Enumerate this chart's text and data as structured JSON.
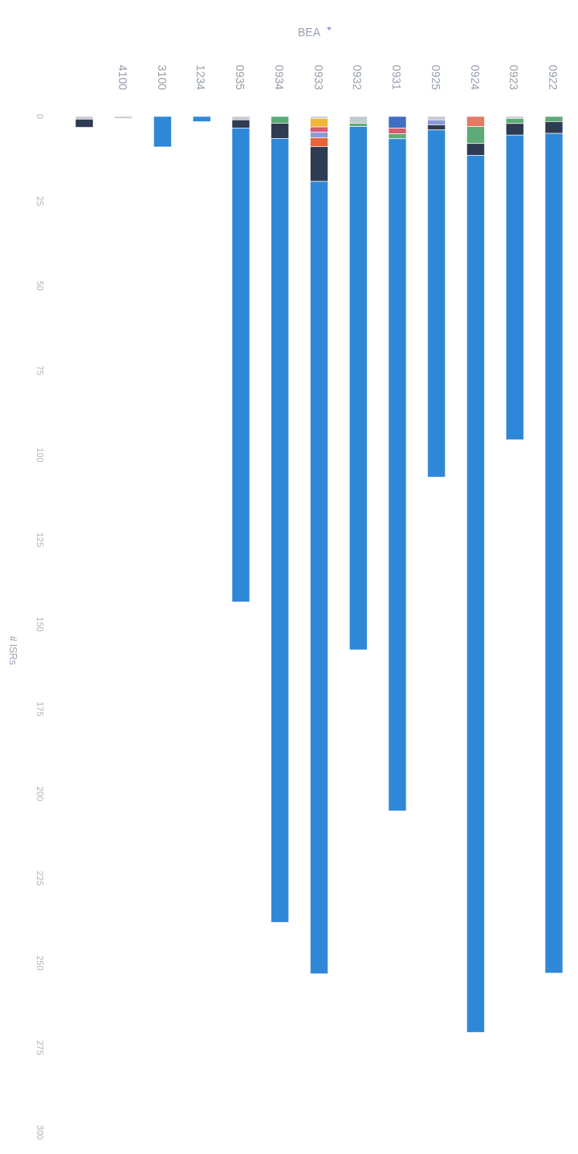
{
  "chart_data": {
    "type": "bar",
    "stacked": true,
    "xlabel": "BEA",
    "ylabel": "# ISRs",
    "categories": [
      null,
      "4100",
      "3100",
      "1234",
      "0935",
      "0934",
      "0933",
      "0932",
      "0931",
      "0925",
      "0924",
      "0923",
      "0922"
    ],
    "ylim": [
      300,
      0
    ],
    "yticks": [
      0,
      25,
      50,
      75,
      100,
      125,
      150,
      175,
      200,
      225,
      250,
      275,
      300
    ],
    "grid": false,
    "series": [
      {
        "color": "#c5c9d0",
        "values": [
          0.8,
          0.6,
          null,
          null,
          1,
          null,
          0.6,
          2,
          null,
          1,
          null,
          0.6,
          null
        ]
      },
      {
        "color": "#3f6fc4",
        "values": [
          null,
          null,
          null,
          null,
          null,
          null,
          null,
          null,
          3.5,
          null,
          null,
          null,
          null
        ]
      },
      {
        "color": "#f3b53a",
        "values": [
          null,
          null,
          null,
          null,
          null,
          null,
          2.5,
          null,
          null,
          null,
          null,
          null,
          null
        ]
      },
      {
        "color": "#e27b63",
        "values": [
          null,
          null,
          null,
          null,
          null,
          null,
          null,
          null,
          null,
          null,
          3,
          null,
          null
        ]
      },
      {
        "color": "#d65a70",
        "values": [
          null,
          null,
          null,
          null,
          null,
          null,
          1.6,
          null,
          1.6,
          null,
          null,
          null,
          null
        ]
      },
      {
        "color": "#8a9ad6",
        "values": [
          null,
          null,
          null,
          null,
          null,
          null,
          1.6,
          null,
          null,
          1.5,
          null,
          null,
          null
        ]
      },
      {
        "color": "#e8653a",
        "values": [
          null,
          null,
          null,
          null,
          null,
          null,
          2.6,
          null,
          null,
          null,
          null,
          null,
          null
        ]
      },
      {
        "color": "#5eaa78",
        "values": [
          null,
          null,
          null,
          null,
          null,
          2,
          null,
          1,
          1.5,
          null,
          5,
          1.5,
          1.5
        ]
      },
      {
        "color": "#2f3b50",
        "values": [
          2.4,
          null,
          null,
          null,
          2.4,
          4.5,
          10.3,
          null,
          null,
          1.5,
          3.5,
          3.4,
          3.5
        ]
      },
      {
        "color": "#2f87d8",
        "values": [
          null,
          null,
          9,
          1.5,
          140,
          231.5,
          234,
          154.5,
          198.5,
          102.5,
          259,
          90,
          248
        ]
      }
    ]
  }
}
